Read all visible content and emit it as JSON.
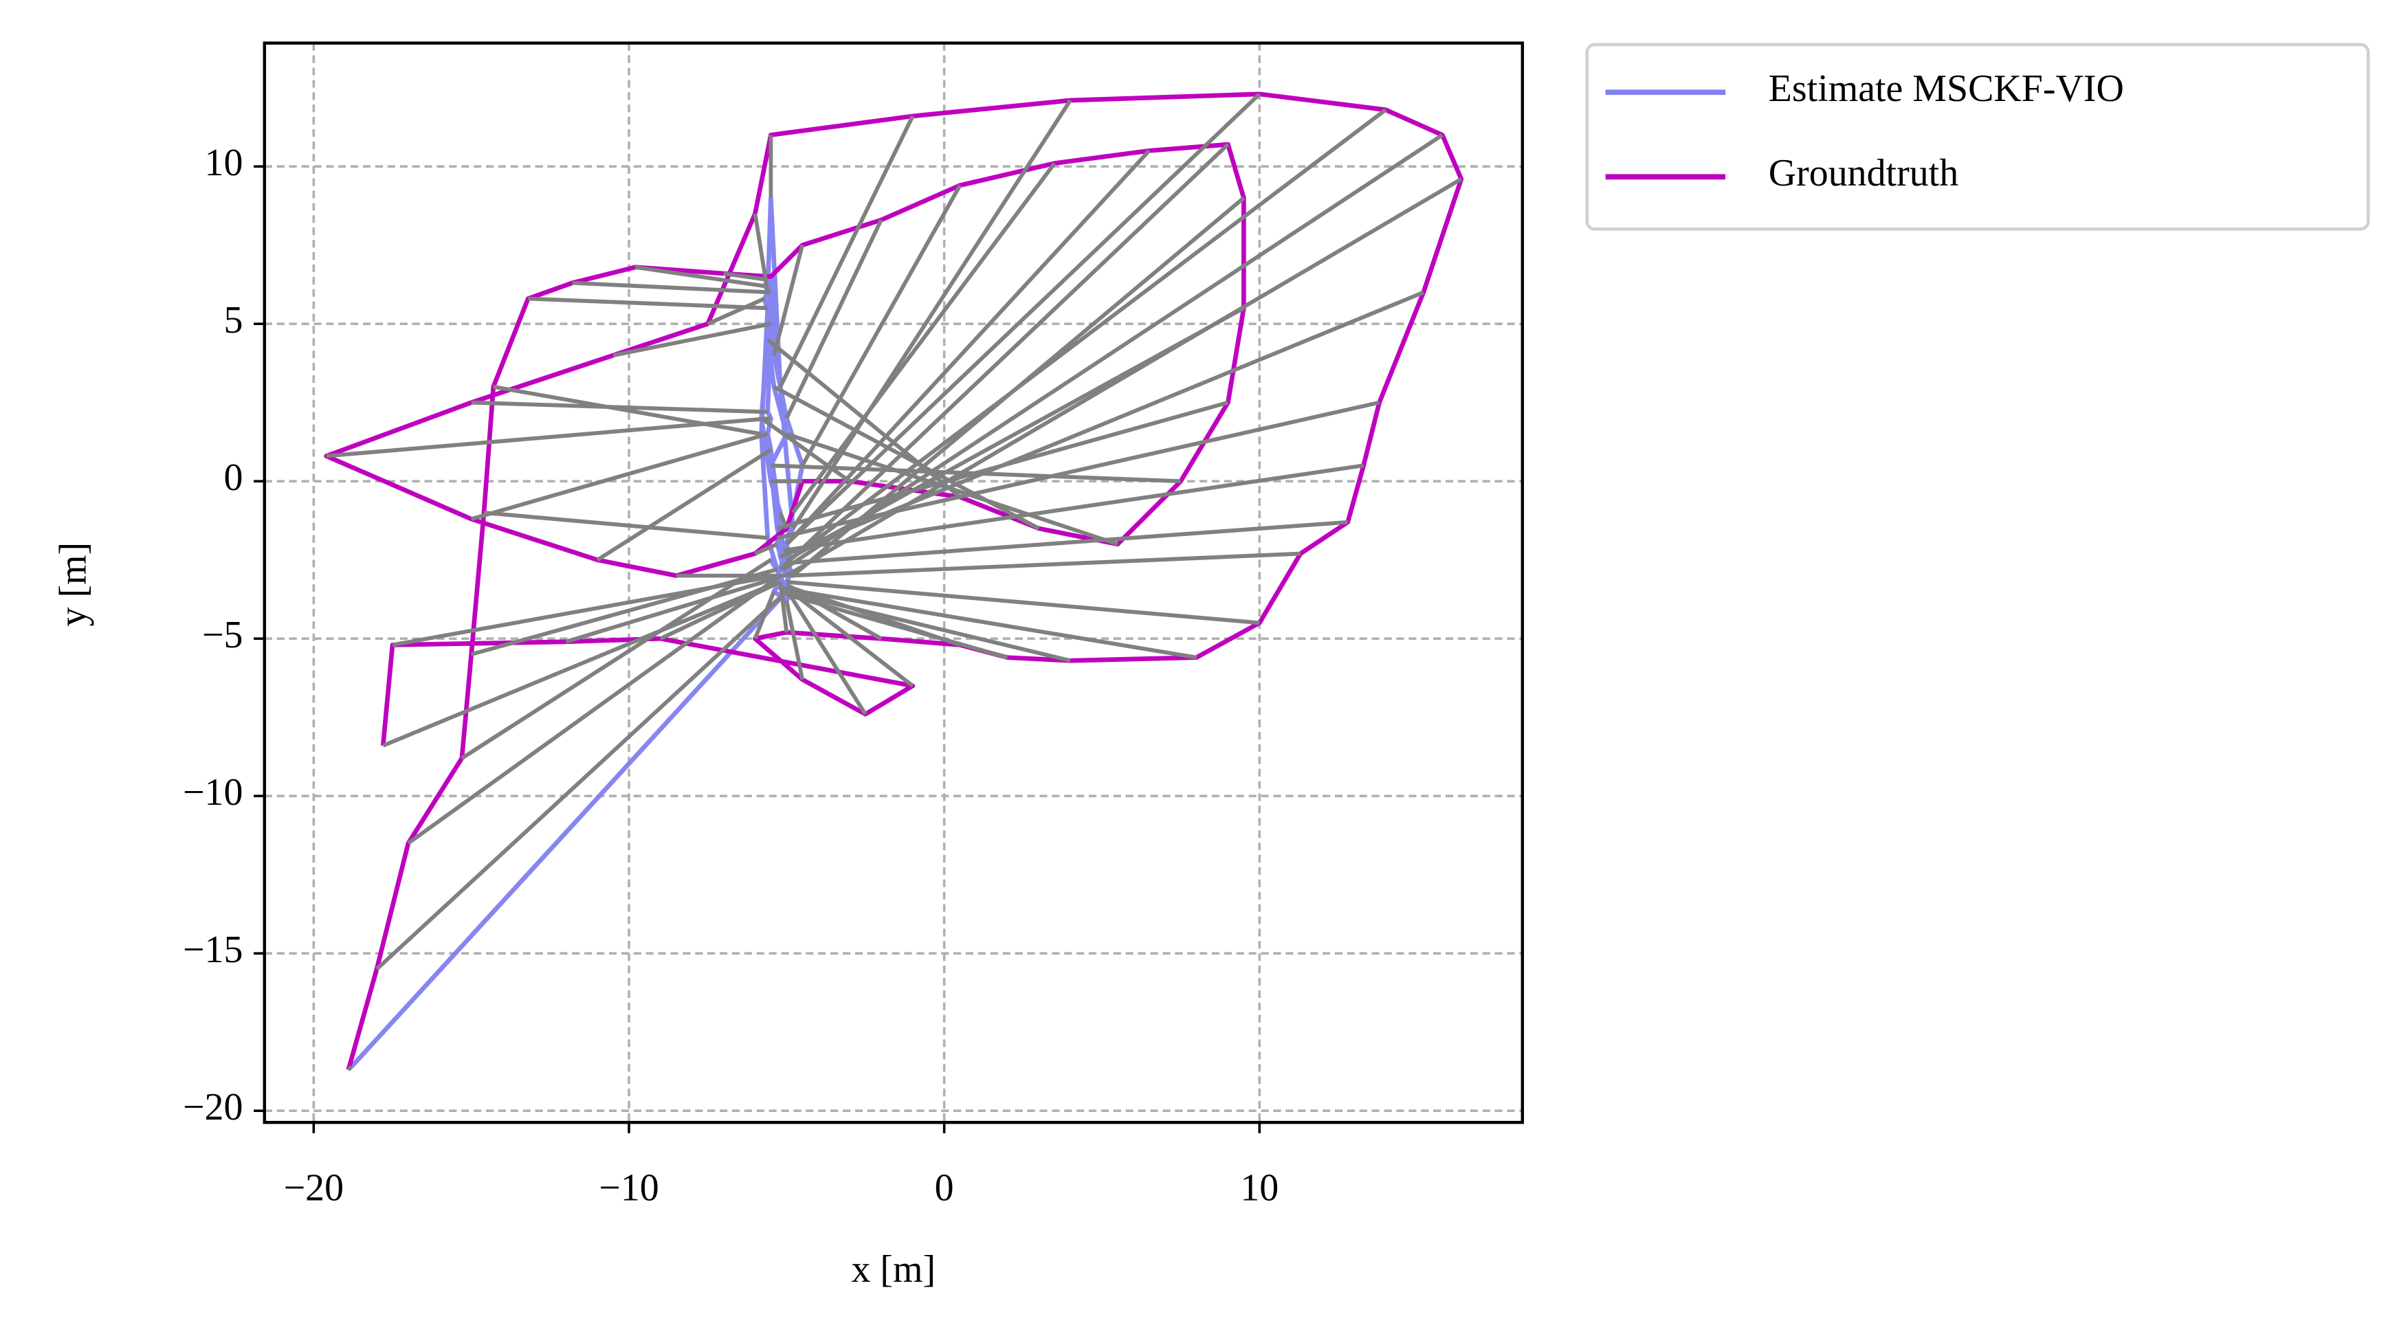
{
  "chart_data": {
    "type": "line",
    "xlabel": "x [m]",
    "ylabel": "y [m]",
    "xlim": [
      -21.56,
      18.34
    ],
    "ylim": [
      -20.37,
      13.92
    ],
    "xticks": [
      {
        "value": -20,
        "label": "−20"
      },
      {
        "value": -10,
        "label": "−10"
      },
      0,
      10
    ],
    "yticks": [
      {
        "value": -20,
        "label": "−20"
      },
      {
        "value": -15,
        "label": "−15"
      },
      {
        "value": -10,
        "label": "−10"
      },
      {
        "value": -5,
        "label": "−5"
      },
      0,
      5,
      10
    ],
    "grid": true,
    "legend": "outside upper left",
    "connector_color": "#808080",
    "series": [
      {
        "name": "Estimate MSCKF-VIO",
        "color": "#8080f0",
        "x": [
          -18.8,
          -5.0,
          -5.2,
          -5.5,
          -5.3,
          -5.6,
          -5.8,
          -5.6,
          -5.5,
          -5.7,
          -5.6,
          -5.5,
          -5.4,
          -5.0,
          -4.5,
          -4.8,
          -5.0,
          -5.2,
          -4.8,
          -5.0,
          -5.3,
          -5.5,
          -5.0,
          -5.4,
          -5.6,
          -5.8,
          -5.5,
          -5.2,
          -5.3,
          -5.0,
          -5.5,
          -5.6,
          -5.5,
          -5.6,
          -5.5,
          -5.7,
          -5.6,
          -5.5,
          -5.2,
          -4.8,
          -5.0,
          -4.9,
          -5.1,
          -5.0,
          -5.2,
          -5.3,
          -5.1,
          -5.0,
          -4.9,
          -5.0,
          -5.2,
          -5.1,
          -5.0,
          -4.8,
          -5.0,
          -5.2,
          -5.4,
          -5.0,
          -4.9,
          -5.0,
          -5.2,
          -5.4,
          -5.3,
          -5.5
        ],
        "y": [
          -18.6,
          -3.5,
          -3.0,
          -2.5,
          -2.8,
          -1.8,
          1.5,
          5.5,
          6.0,
          6.2,
          6.4,
          6.5,
          4.0,
          2.0,
          0.5,
          -1.0,
          -2.0,
          -2.8,
          -3.0,
          -2.5,
          -1.5,
          0.5,
          1.5,
          3.0,
          4.5,
          2.0,
          0.0,
          -1.0,
          -2.0,
          -3.0,
          1.0,
          1.5,
          2.0,
          2.2,
          5.0,
          5.8,
          6.0,
          9.0,
          3.0,
          -1.5,
          -2.0,
          -2.5,
          -2.8,
          -3.0,
          -2.4,
          -1.8,
          -2.2,
          -2.6,
          -3.0,
          -3.2,
          -3.4,
          -3.5,
          -3.6,
          -3.4,
          -3.3,
          -3.2,
          -3.5,
          -3.8,
          -3.6,
          -3.4,
          -3.2,
          -3.1,
          -3.0,
          -3.3
        ]
      },
      {
        "name": "Groundtruth",
        "color": "#bf00bf",
        "x": [
          -18.9,
          -18.0,
          -17.0,
          -15.3,
          -15.0,
          -14.6,
          -14.3,
          -13.2,
          -11.8,
          -9.8,
          -7.0,
          -5.5,
          -4.5,
          -2.0,
          0.5,
          3.5,
          6.5,
          9.0,
          9.5,
          9.5,
          9.0,
          7.5,
          5.5,
          3.0,
          0.5,
          -3.0,
          -4.5,
          -5.0,
          -6.0,
          -8.5,
          -11.0,
          -15.0,
          -19.6,
          -15.0,
          -10.5,
          -7.5,
          -6.0,
          -5.5,
          -1.0,
          4.0,
          10.0,
          14.0,
          15.8,
          16.4,
          15.2,
          13.8,
          13.3,
          12.8,
          11.3,
          10.0,
          8.0,
          4.0,
          2.0,
          0.5,
          -2.0,
          -5.0,
          -6.0,
          -4.5,
          -2.5,
          -1.0,
          -9.0,
          -12.0,
          -17.5,
          -17.8
        ],
        "y": [
          -18.7,
          -15.5,
          -11.5,
          -8.8,
          -5.5,
          -1.0,
          3.0,
          5.8,
          6.3,
          6.8,
          6.6,
          6.5,
          7.5,
          8.3,
          9.4,
          10.1,
          10.5,
          10.7,
          9.0,
          5.5,
          2.5,
          0.0,
          -2.0,
          -1.5,
          -0.5,
          0.0,
          0.0,
          -1.5,
          -2.3,
          -3.0,
          -2.5,
          -1.2,
          0.8,
          2.5,
          4.0,
          5.0,
          8.5,
          11.0,
          11.6,
          12.1,
          12.3,
          11.8,
          11.0,
          9.6,
          6.0,
          2.5,
          0.5,
          -1.3,
          -2.3,
          -4.5,
          -5.6,
          -5.7,
          -5.6,
          -5.2,
          -5.0,
          -4.8,
          -5.0,
          -6.3,
          -7.4,
          -6.5,
          -5.0,
          -5.1,
          -5.2,
          -8.4
        ]
      }
    ]
  }
}
